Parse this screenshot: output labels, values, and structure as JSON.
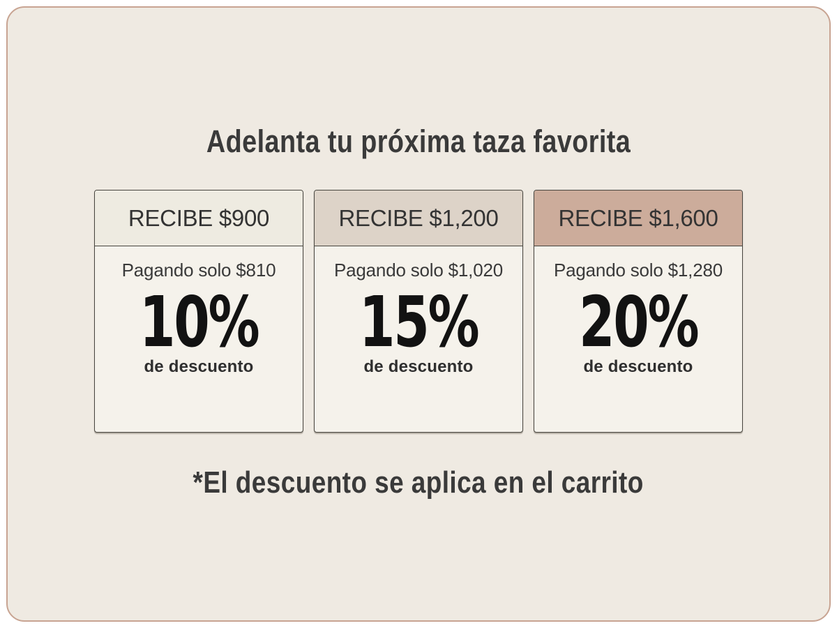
{
  "panel": {
    "title": "Adelanta tu próxima taza favorita",
    "footnote": "*El descuento se aplica en el carrito"
  },
  "tiers": [
    {
      "header": "RECIBE $900",
      "paying": "Pagando solo $810",
      "percent": "10%",
      "percent_label": "de descuento",
      "header_color": "#EEEBE1"
    },
    {
      "header": "RECIBE $1,200",
      "paying": "Pagando solo $1,020",
      "percent": "15%",
      "percent_label": "de descuento",
      "header_color": "#DDD3C8"
    },
    {
      "header": "RECIBE $1,600",
      "paying": "Pagando solo $1,280",
      "percent": "20%",
      "percent_label": "de descuento",
      "header_color": "#CCAC9B"
    }
  ],
  "colors": {
    "canvas": "#ffffff",
    "panel_background": "#EFEAE2",
    "panel_border": "#C8A492",
    "card_background": "#F5F2EB",
    "card_border": "#47453F",
    "text": "#333333",
    "percent_text": "#121212"
  }
}
